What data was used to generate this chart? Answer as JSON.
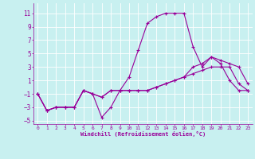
{
  "xlabel": "Windchill (Refroidissement éolien,°C)",
  "background_color": "#c8f0f0",
  "line_color": "#990099",
  "grid_color": "#ffffff",
  "xlim": [
    -0.5,
    23.5
  ],
  "ylim": [
    -5.5,
    12.5
  ],
  "xticks": [
    0,
    1,
    2,
    3,
    4,
    5,
    6,
    7,
    8,
    9,
    10,
    11,
    12,
    13,
    14,
    15,
    16,
    17,
    18,
    19,
    20,
    21,
    22,
    23
  ],
  "yticks": [
    -5,
    -3,
    -1,
    1,
    3,
    5,
    7,
    9,
    11
  ],
  "line1_x": [
    0,
    1,
    2,
    3,
    4,
    5,
    6,
    7,
    8,
    9,
    10,
    11,
    12,
    13,
    14,
    15,
    16,
    17,
    18,
    19,
    20,
    21,
    22,
    23
  ],
  "line1_y": [
    -1,
    -3.5,
    -3,
    -3,
    -3,
    -0.5,
    -1,
    -4.5,
    -3,
    -0.5,
    1.5,
    5.5,
    9.5,
    10.5,
    11,
    11,
    11,
    6,
    3,
    4.5,
    3.5,
    1,
    -0.5,
    -0.5
  ],
  "line2_x": [
    0,
    1,
    2,
    3,
    4,
    5,
    6,
    7,
    8,
    9,
    10,
    11,
    12,
    13,
    14,
    15,
    16,
    17,
    18,
    19,
    20,
    21,
    22,
    23
  ],
  "line2_y": [
    -1,
    -3.5,
    -3,
    -3,
    -3,
    -0.5,
    -1,
    -1.5,
    -0.5,
    -0.5,
    -0.5,
    -0.5,
    -0.5,
    0,
    0.5,
    1,
    1.5,
    2,
    2.5,
    3,
    3,
    3,
    0.5,
    -0.5
  ],
  "line3_x": [
    0,
    1,
    2,
    3,
    4,
    5,
    6,
    7,
    8,
    9,
    10,
    11,
    12,
    13,
    14,
    15,
    16,
    17,
    18,
    19,
    20,
    21,
    22,
    23
  ],
  "line3_y": [
    -1,
    -3.5,
    -3,
    -3,
    -3,
    -0.5,
    -1,
    -1.5,
    -0.5,
    -0.5,
    -0.5,
    -0.5,
    -0.5,
    0,
    0.5,
    1,
    1.5,
    3,
    3.5,
    4.5,
    4,
    3.5,
    3,
    0.5
  ]
}
